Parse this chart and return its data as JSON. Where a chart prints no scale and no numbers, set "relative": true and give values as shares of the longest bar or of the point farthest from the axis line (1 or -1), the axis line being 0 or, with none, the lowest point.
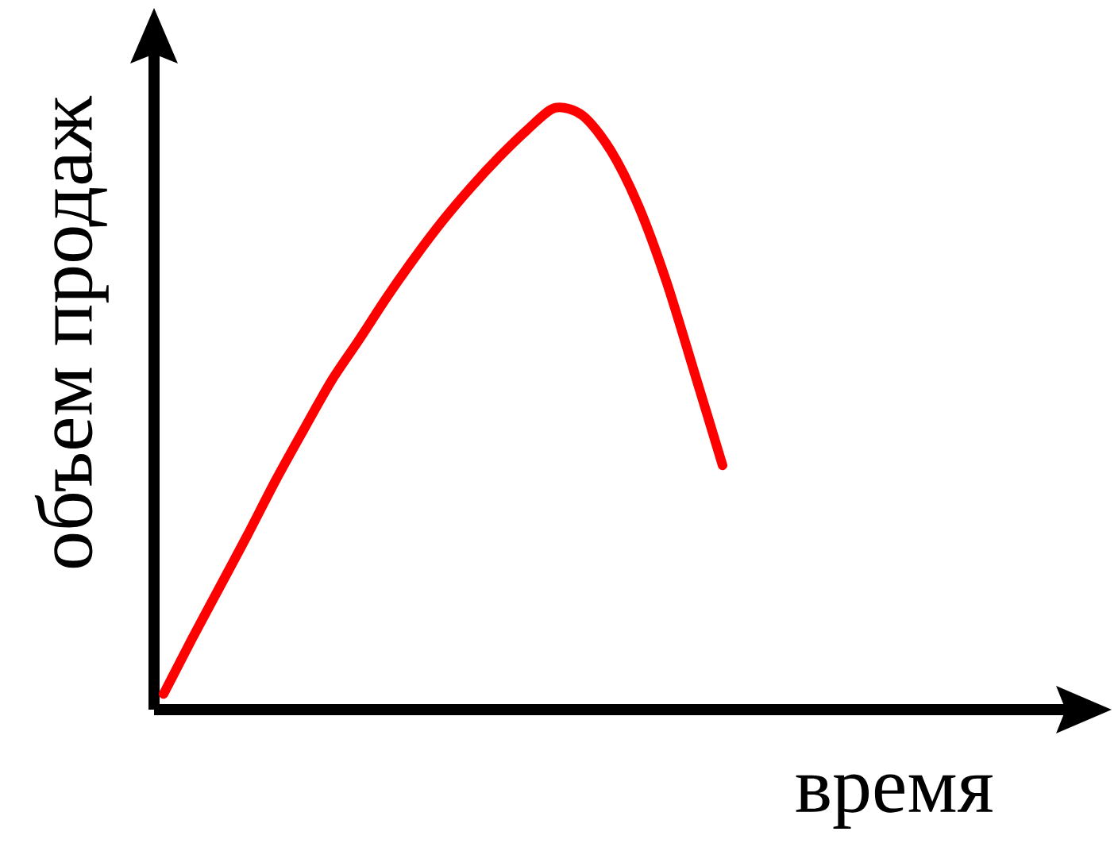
{
  "chart_data": {
    "type": "line",
    "relative": true,
    "xlabel": "время",
    "ylabel": "объем продаж",
    "categories": [
      null,
      null,
      null,
      null,
      null,
      null,
      null,
      null,
      null,
      null,
      null,
      null,
      null,
      null,
      null,
      null,
      null,
      null,
      null,
      null,
      null
    ],
    "series": [
      {
        "color": "#ff0000",
        "values": [
          0.026,
          0.116,
          0.203,
          0.29,
          0.38,
          0.464,
          0.546,
          0.615,
          0.686,
          0.752,
          0.813,
          0.868,
          0.918,
          0.963,
          1,
          0.987,
          0.929,
          0.836,
          0.71,
          0.559,
          0.406
        ]
      }
    ]
  }
}
